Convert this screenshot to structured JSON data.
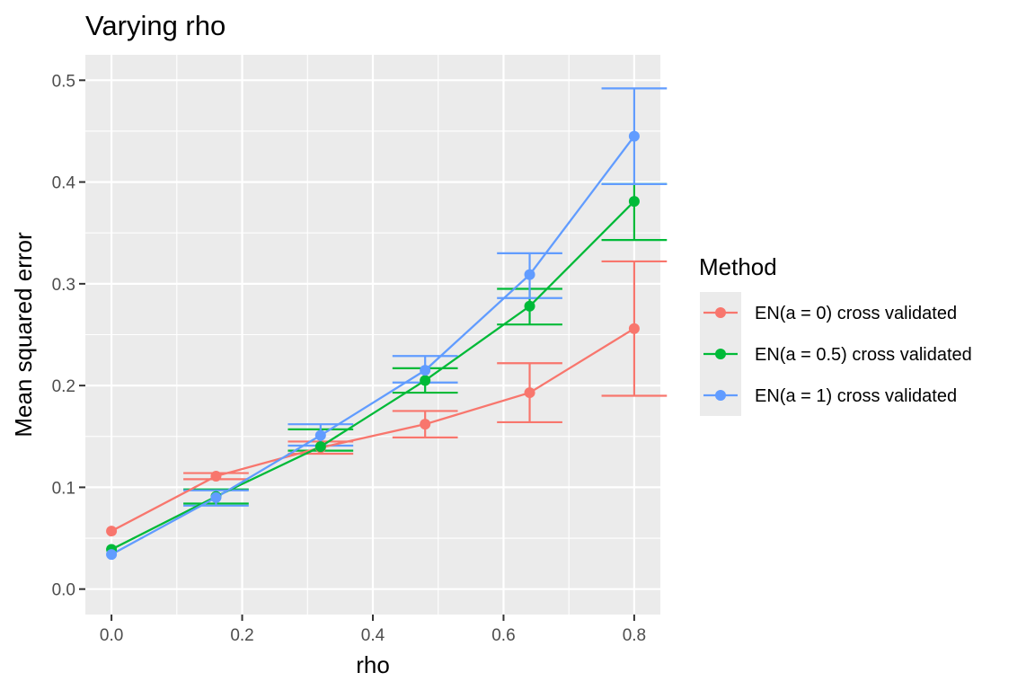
{
  "chart_data": {
    "type": "line",
    "title": "Varying rho",
    "xlabel": "rho",
    "ylabel": "Mean squared error",
    "xlim": [
      -0.04,
      0.84
    ],
    "ylim": [
      -0.025,
      0.525
    ],
    "x_ticks": [
      0.0,
      0.2,
      0.4,
      0.6,
      0.8
    ],
    "x_tick_labels": [
      "0.0",
      "0.2",
      "0.4",
      "0.6",
      "0.8"
    ],
    "y_ticks": [
      0.0,
      0.1,
      0.2,
      0.3,
      0.4,
      0.5
    ],
    "y_tick_labels": [
      "0.0",
      "0.1",
      "0.2",
      "0.3",
      "0.4",
      "0.5"
    ],
    "grid": true,
    "error_bars": true,
    "legend": {
      "title": "Method",
      "position": "right"
    },
    "x": [
      0.0,
      0.16,
      0.32,
      0.48,
      0.64,
      0.8
    ],
    "series": [
      {
        "name": "EN(a = 0) cross validated",
        "color": "#F8766D",
        "values": [
          0.057,
          0.111,
          0.139,
          0.162,
          0.193,
          0.256
        ],
        "lower": [
          0.057,
          0.108,
          0.133,
          0.149,
          0.164,
          0.19
        ],
        "upper": [
          0.057,
          0.114,
          0.145,
          0.175,
          0.222,
          0.322
        ]
      },
      {
        "name": "EN(a = 0.5) cross validated",
        "color": "#00BA38",
        "values": [
          0.039,
          0.091,
          0.14,
          0.205,
          0.278,
          0.381
        ],
        "lower": [
          0.039,
          0.084,
          0.136,
          0.193,
          0.26,
          0.343
        ],
        "upper": [
          0.039,
          0.098,
          0.157,
          0.217,
          0.295,
          0.398
        ]
      },
      {
        "name": "EN(a = 1) cross validated",
        "color": "#619CFF",
        "values": [
          0.034,
          0.09,
          0.151,
          0.215,
          0.309,
          0.445
        ],
        "lower": [
          0.034,
          0.082,
          0.141,
          0.203,
          0.286,
          0.398
        ],
        "upper": [
          0.034,
          0.097,
          0.162,
          0.229,
          0.33,
          0.492
        ]
      }
    ]
  }
}
